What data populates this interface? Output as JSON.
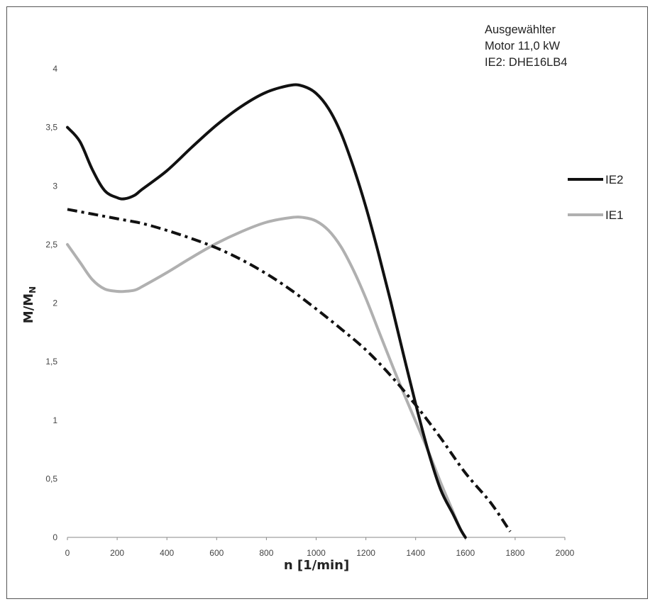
{
  "chart_data": {
    "type": "line",
    "annotation": [
      "Ausgewählter",
      "Motor 11,0 kW",
      "IE2: DHE16LB4"
    ],
    "xlabel": "n [1/min]",
    "ylabel_main": "M/M",
    "ylabel_sub": "N",
    "xlim": [
      0,
      2000
    ],
    "ylim": [
      0,
      4
    ],
    "x_ticks": [
      0,
      200,
      400,
      600,
      800,
      1000,
      1200,
      1400,
      1600,
      1800,
      2000
    ],
    "x_tick_labels": [
      "0",
      "200",
      "400",
      "600",
      "800",
      "1000",
      "1200",
      "1400",
      "1600",
      "1800",
      "2000"
    ],
    "y_ticks": [
      0,
      0.5,
      1,
      1.5,
      2,
      2.5,
      3,
      3.5,
      4
    ],
    "y_tick_labels": [
      "0",
      "0,5",
      "1",
      "1,5",
      "2",
      "2,5",
      "3",
      "3,5",
      "4"
    ],
    "grid": false,
    "legend_position": "right",
    "series": [
      {
        "name": "IE2",
        "color": "#111111",
        "style": "solid",
        "x": [
          0,
          50,
          100,
          150,
          200,
          230,
          270,
          300,
          400,
          500,
          600,
          700,
          800,
          900,
          950,
          1000,
          1050,
          1100,
          1150,
          1200,
          1250,
          1300,
          1350,
          1400,
          1450,
          1500,
          1550,
          1580,
          1600
        ],
        "y": [
          3.5,
          3.38,
          3.14,
          2.96,
          2.9,
          2.89,
          2.92,
          2.97,
          3.13,
          3.33,
          3.52,
          3.68,
          3.8,
          3.86,
          3.85,
          3.79,
          3.66,
          3.45,
          3.16,
          2.82,
          2.43,
          2.01,
          1.57,
          1.14,
          0.74,
          0.41,
          0.2,
          0.07,
          0.0
        ]
      },
      {
        "name": "IE1",
        "color": "#b0b0b0",
        "style": "solid",
        "x": [
          0,
          50,
          100,
          150,
          200,
          230,
          270,
          300,
          400,
          500,
          600,
          700,
          800,
          900,
          950,
          1000,
          1050,
          1100,
          1150,
          1200,
          1250,
          1300,
          1350,
          1400,
          1450,
          1500,
          1550,
          1580,
          1600
        ],
        "y": [
          2.5,
          2.35,
          2.2,
          2.12,
          2.1,
          2.1,
          2.11,
          2.14,
          2.26,
          2.39,
          2.51,
          2.61,
          2.69,
          2.73,
          2.73,
          2.7,
          2.62,
          2.48,
          2.28,
          2.04,
          1.77,
          1.5,
          1.24,
          0.99,
          0.74,
          0.47,
          0.22,
          0.07,
          0.0
        ]
      },
      {
        "name": "",
        "color": "#111111",
        "style": "dash-dot",
        "x": [
          0,
          100,
          200,
          300,
          400,
          500,
          600,
          700,
          800,
          900,
          1000,
          1100,
          1200,
          1300,
          1400,
          1500,
          1600,
          1700,
          1780
        ],
        "y": [
          2.8,
          2.76,
          2.72,
          2.68,
          2.62,
          2.55,
          2.47,
          2.37,
          2.25,
          2.11,
          1.95,
          1.78,
          1.6,
          1.38,
          1.13,
          0.85,
          0.55,
          0.3,
          0.05
        ]
      }
    ]
  }
}
